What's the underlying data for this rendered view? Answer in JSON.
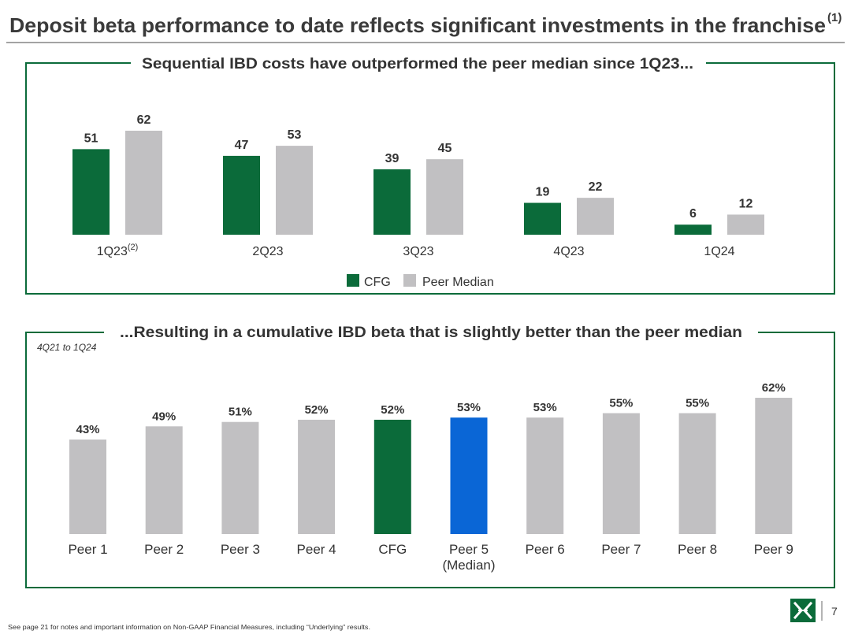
{
  "slide": {
    "title": "Deposit beta performance to date reflects significant investments in the franchise",
    "title_footnote": "(1)",
    "footer_note": "See page 21 for notes and important information on Non-GAAP Financial Measures, including “Underlying” results.",
    "page_number": "7",
    "brand_color": "#0b6b3a",
    "logo_icon": "citizens-logo-icon"
  },
  "chart_data": [
    {
      "type": "bar",
      "title": "Sequential IBD costs have outperformed the peer median since 1Q23...",
      "categories": [
        "1Q23",
        "2Q23",
        "3Q23",
        "4Q23",
        "1Q24"
      ],
      "category_superscripts": [
        "(2)",
        null,
        null,
        null,
        null
      ],
      "series": [
        {
          "name": "CFG",
          "color": "#0b6b3a",
          "values": [
            51,
            47,
            39,
            19,
            6
          ]
        },
        {
          "name": "Peer Median",
          "color": "#c1c0c2",
          "values": [
            62,
            53,
            45,
            22,
            12
          ]
        }
      ],
      "xlabel": "",
      "ylabel": "",
      "ylim": [
        0,
        70
      ],
      "grid": false,
      "legend": "bottom-center"
    },
    {
      "type": "bar",
      "title": "...Resulting in a cumulative IBD beta that is slightly better than the peer median",
      "subtitle": "4Q21 to 1Q24",
      "categories": [
        "Peer 1",
        "Peer 2",
        "Peer 3",
        "Peer 4",
        "CFG",
        "Peer 5",
        "Peer 6",
        "Peer 7",
        "Peer 8",
        "Peer 9"
      ],
      "category_sublabels": [
        null,
        null,
        null,
        null,
        null,
        "(Median)",
        null,
        null,
        null,
        null
      ],
      "values": [
        43,
        49,
        51,
        52,
        52,
        53,
        53,
        55,
        55,
        62
      ],
      "value_labels": [
        "43%",
        "49%",
        "51%",
        "52%",
        "52%",
        "53%",
        "53%",
        "55%",
        "55%",
        "62%"
      ],
      "default_color": "#c1c0c2",
      "highlight_colors": {
        "CFG": "#0b6b3a",
        "Peer 5": "#0a66d6"
      },
      "xlabel": "",
      "ylabel": "",
      "ylim": [
        0,
        70
      ],
      "grid": false
    }
  ]
}
